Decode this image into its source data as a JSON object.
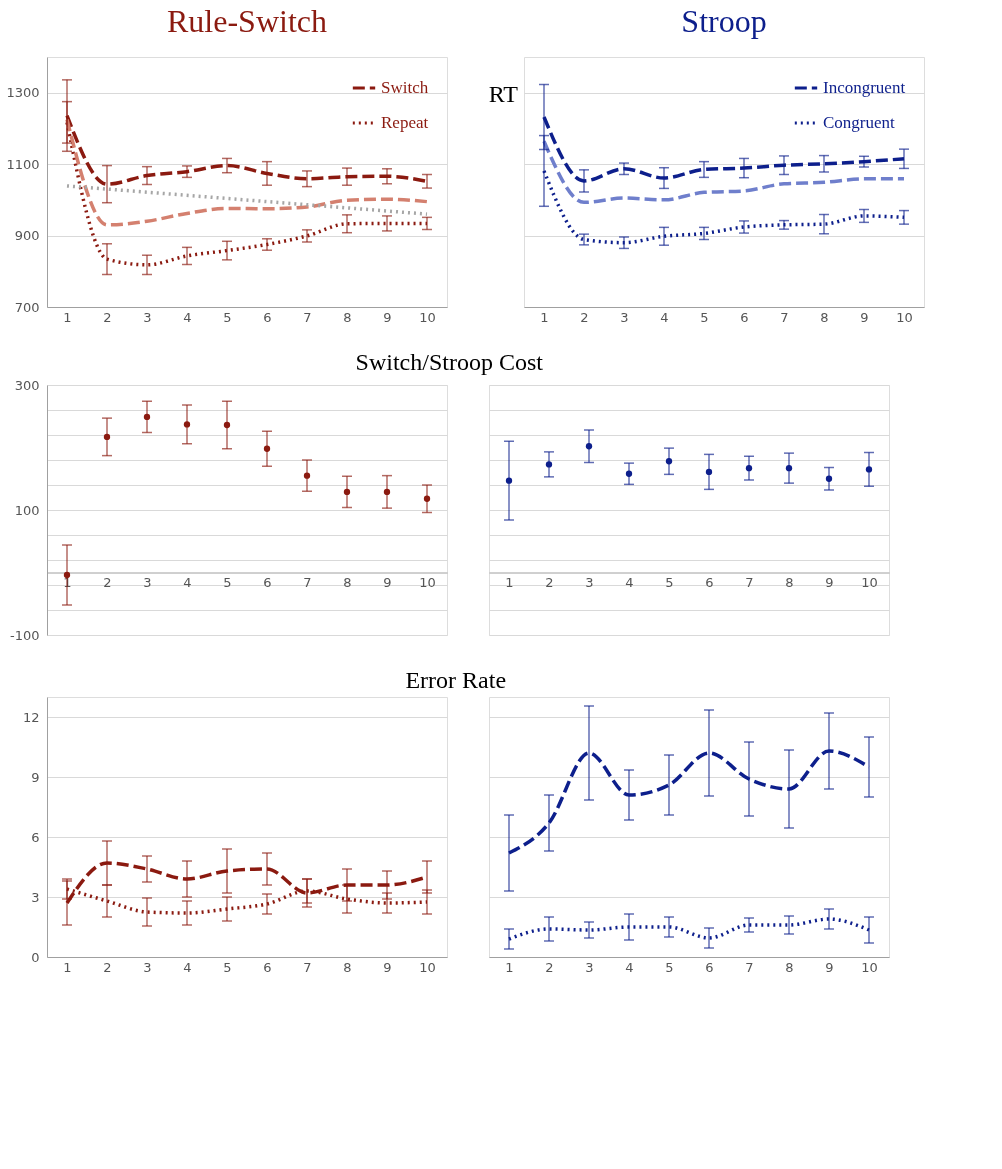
{
  "chart_data": [
    {
      "type": "line",
      "title": "Rule-Switch",
      "x": [
        1,
        2,
        3,
        4,
        5,
        6,
        7,
        8,
        9,
        10
      ],
      "xlim": [
        0.5,
        10.5
      ],
      "xticks": [
        1,
        2,
        3,
        4,
        5,
        6,
        7,
        8,
        9,
        10
      ],
      "ylim": [
        700,
        1400
      ],
      "yticks": [
        700,
        900,
        1100,
        1300
      ],
      "grid": "y",
      "legend": "top right",
      "series": [
        {
          "name": "Switch",
          "color": "#8b1a10",
          "line_style": "dashed",
          "values": [
            1236,
            1044,
            1068,
            1079,
            1096,
            1074,
            1059,
            1065,
            1066,
            1052
          ],
          "errors": [
            100,
            52,
            25,
            16,
            20,
            33,
            22,
            24,
            21,
            19
          ]
        },
        {
          "name": "Repeat",
          "color": "#8b1a10",
          "line_style": "dotted",
          "values": [
            1217,
            834,
            818,
            843,
            858,
            875,
            899,
            933,
            934,
            934
          ],
          "errors": [
            58,
            43,
            27,
            24,
            26,
            16,
            17,
            25,
            21,
            17
          ]
        },
        {
          "color": "#d4806f",
          "line_style": "dashed",
          "values": [
            1225,
            930,
            940,
            962,
            976,
            975,
            980,
            999,
            1002,
            995
          ]
        },
        {
          "color": "#a6a6a6",
          "line_style": "dotted",
          "x": [
            1,
            10
          ],
          "values": [
            1039,
            960
          ]
        }
      ]
    },
    {
      "type": "line",
      "title": "Stroop",
      "ylabel": "RT",
      "x": [
        1,
        2,
        3,
        4,
        5,
        6,
        7,
        8,
        9,
        10
      ],
      "xlim": [
        0.5,
        10.5
      ],
      "xticks": [
        1,
        2,
        3,
        4,
        5,
        6,
        7,
        8,
        9,
        10
      ],
      "ylim": [
        700,
        1400
      ],
      "yticks": [
        700,
        900,
        1100,
        1300
      ],
      "grid": "y",
      "legend": "top right",
      "tick_labels": "x",
      "series": [
        {
          "name": "Incongruent",
          "color": "#0d1f8c",
          "line_style": "dashed",
          "values": [
            1232,
            1053,
            1087,
            1061,
            1085,
            1089,
            1097,
            1101,
            1107,
            1115
          ],
          "errors": [
            91,
            31,
            16,
            29,
            22,
            27,
            26,
            23,
            15,
            27
          ]
        },
        {
          "name": "Congruent",
          "color": "#0d1f8c",
          "line_style": "dotted",
          "values": [
            1081,
            889,
            880,
            898,
            906,
            924,
            930,
            932,
            955,
            951
          ],
          "errors": [
            99,
            15,
            16,
            25,
            17,
            17,
            12,
            27,
            18,
            19
          ]
        },
        {
          "color": "#6f7fcc",
          "line_style": "dashed",
          "values": [
            1164,
            993,
            1005,
            1000,
            1021,
            1025,
            1045,
            1049,
            1059,
            1059
          ]
        }
      ]
    },
    {
      "type": "scatter",
      "title": "Switch/Stroop Cost",
      "marker": "circle",
      "x": [
        1,
        2,
        3,
        4,
        5,
        6,
        7,
        8,
        9,
        10
      ],
      "xlim": [
        0.5,
        10.5
      ],
      "xticks": [
        1,
        2,
        3,
        4,
        5,
        6,
        7,
        8,
        9,
        10
      ],
      "ylim": [
        -100,
        300
      ],
      "yticks": [
        300,
        {
          "value": 260,
          "label": null
        },
        {
          "value": 220,
          "label": null
        },
        {
          "value": 180,
          "label": null
        },
        {
          "value": 140,
          "label": null
        },
        100,
        {
          "value": 60,
          "label": null
        },
        {
          "value": 20,
          "label": null
        },
        {
          "value": -20,
          "label": null
        },
        {
          "value": -60,
          "label": null
        },
        -100
      ],
      "grid": "y",
      "series": [
        {
          "color": "#8b1a10",
          "values": [
            -4,
            217,
            249,
            237,
            236,
            198,
            155,
            129,
            129,
            118
          ],
          "errors": [
            48,
            30,
            25,
            31,
            38,
            28,
            25,
            25,
            26,
            22
          ]
        }
      ]
    },
    {
      "type": "scatter",
      "marker": "circle",
      "x": [
        1,
        2,
        3,
        4,
        5,
        6,
        7,
        8,
        9,
        10
      ],
      "xlim": [
        0.5,
        10.5
      ],
      "xticks": [
        1,
        2,
        3,
        4,
        5,
        6,
        7,
        8,
        9,
        10
      ],
      "ylim": [
        -100,
        300
      ],
      "yticks": [
        300,
        {
          "value": 260,
          "label": null
        },
        {
          "value": 220,
          "label": null
        },
        {
          "value": 180,
          "label": null
        },
        {
          "value": 140,
          "label": null
        },
        100,
        {
          "value": 60,
          "label": null
        },
        {
          "value": 20,
          "label": null
        },
        {
          "value": -20,
          "label": null
        },
        {
          "value": -60,
          "label": null
        },
        -100
      ],
      "grid": "y",
      "tick_labels": "x",
      "series": [
        {
          "color": "#0d1f8c",
          "values": [
            147,
            173,
            202,
            158,
            178,
            161,
            167,
            167,
            150,
            165
          ],
          "errors": [
            63,
            20,
            26,
            17,
            21,
            28,
            19,
            24,
            18,
            27
          ]
        }
      ]
    },
    {
      "type": "line",
      "title": "Error Rate",
      "x": [
        1,
        2,
        3,
        4,
        5,
        6,
        7,
        8,
        9,
        10
      ],
      "xlim": [
        0.5,
        10.5
      ],
      "xticks": [
        1,
        2,
        3,
        4,
        5,
        6,
        7,
        8,
        9,
        10
      ],
      "ylim": [
        0,
        13
      ],
      "yticks": [
        0,
        3,
        6,
        9,
        12
      ],
      "grid": "y",
      "series": [
        {
          "color": "#8b1a10",
          "line_style": "dashed",
          "values": [
            2.7,
            4.7,
            4.4,
            3.9,
            4.3,
            4.4,
            3.2,
            3.6,
            3.6,
            4.0
          ],
          "errors": [
            1.1,
            1.1,
            0.65,
            0.9,
            1.1,
            0.8,
            0.7,
            0.8,
            0.7,
            0.8
          ]
        },
        {
          "color": "#8b1a10",
          "line_style": "dotted",
          "values": [
            3.4,
            2.8,
            2.25,
            2.2,
            2.4,
            2.65,
            3.3,
            2.9,
            2.7,
            2.75
          ],
          "errors": [
            0.5,
            0.8,
            0.7,
            0.6,
            0.6,
            0.5,
            0.6,
            0.7,
            0.5,
            0.6
          ]
        }
      ]
    },
    {
      "type": "line",
      "x": [
        1,
        2,
        3,
        4,
        5,
        6,
        7,
        8,
        9,
        10
      ],
      "xlim": [
        0.5,
        10.5
      ],
      "xticks": [
        1,
        2,
        3,
        4,
        5,
        6,
        7,
        8,
        9,
        10
      ],
      "ylim": [
        0,
        13
      ],
      "yticks": [
        0,
        3,
        6,
        9,
        12
      ],
      "grid": "y",
      "tick_labels": "x",
      "series": [
        {
          "color": "#0d1f8c",
          "line_style": "dashed",
          "values": [
            5.2,
            6.7,
            10.2,
            8.1,
            8.6,
            10.2,
            8.9,
            8.4,
            10.3,
            9.5
          ],
          "errors": [
            1.9,
            1.4,
            2.35,
            1.25,
            1.5,
            2.15,
            1.85,
            1.95,
            1.9,
            1.5
          ]
        },
        {
          "color": "#0d1f8c",
          "line_style": "dotted",
          "values": [
            0.9,
            1.4,
            1.35,
            1.5,
            1.5,
            0.95,
            1.6,
            1.6,
            1.9,
            1.35
          ],
          "errors": [
            0.5,
            0.6,
            0.4,
            0.65,
            0.5,
            0.5,
            0.35,
            0.45,
            0.5,
            0.65
          ]
        }
      ]
    }
  ]
}
